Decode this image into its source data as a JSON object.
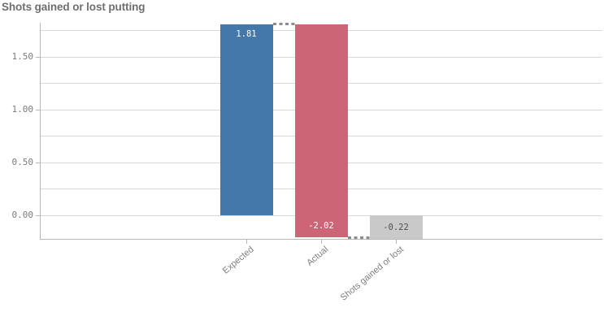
{
  "chart_data": {
    "type": "bar",
    "subtype": "waterfall",
    "title": "Shots gained or lost putting",
    "categories": [
      "Expected",
      "Actual",
      "Shots gained or lost"
    ],
    "bars": [
      {
        "category": "Expected",
        "start": 0,
        "end": 1.81,
        "value_label": "1.81",
        "color": "#4477aa",
        "label_color": "#ffffff",
        "label_anchor": "top"
      },
      {
        "category": "Actual",
        "start": 1.81,
        "end": -0.21,
        "value_label": "-2.02",
        "color": "#cc6677",
        "label_color": "#ffffff",
        "label_anchor": "bottom"
      },
      {
        "category": "Shots gained or lost",
        "start": 0,
        "end": -0.22,
        "value_label": "-0.22",
        "color": "#c9c9c9",
        "label_color": "#4d4d4d",
        "label_anchor": "bottom"
      }
    ],
    "connectors": [
      {
        "from_index": 0,
        "to_index": 1,
        "value": 1.81
      },
      {
        "from_index": 1,
        "to_index": 2,
        "value": -0.21
      }
    ],
    "y_axis": {
      "min": -0.22,
      "max": 1.82,
      "minor_step": 0.25,
      "grid": true,
      "major_ticks": [
        {
          "value": 0,
          "label": "0.00"
        },
        {
          "value": 0.5,
          "label": "0.50"
        },
        {
          "value": 1.0,
          "label": "1.00"
        },
        {
          "value": 1.5,
          "label": "1.50"
        }
      ]
    },
    "legend": "none",
    "colors": {
      "grid": "#d9d9d9",
      "axis": "#b6b6b6",
      "connector": "#8c8c8c",
      "tick_label": "#7b7b7b",
      "category_label": "#7d7d7d",
      "title": "#6e6e6e",
      "background": "#ffffff"
    }
  }
}
